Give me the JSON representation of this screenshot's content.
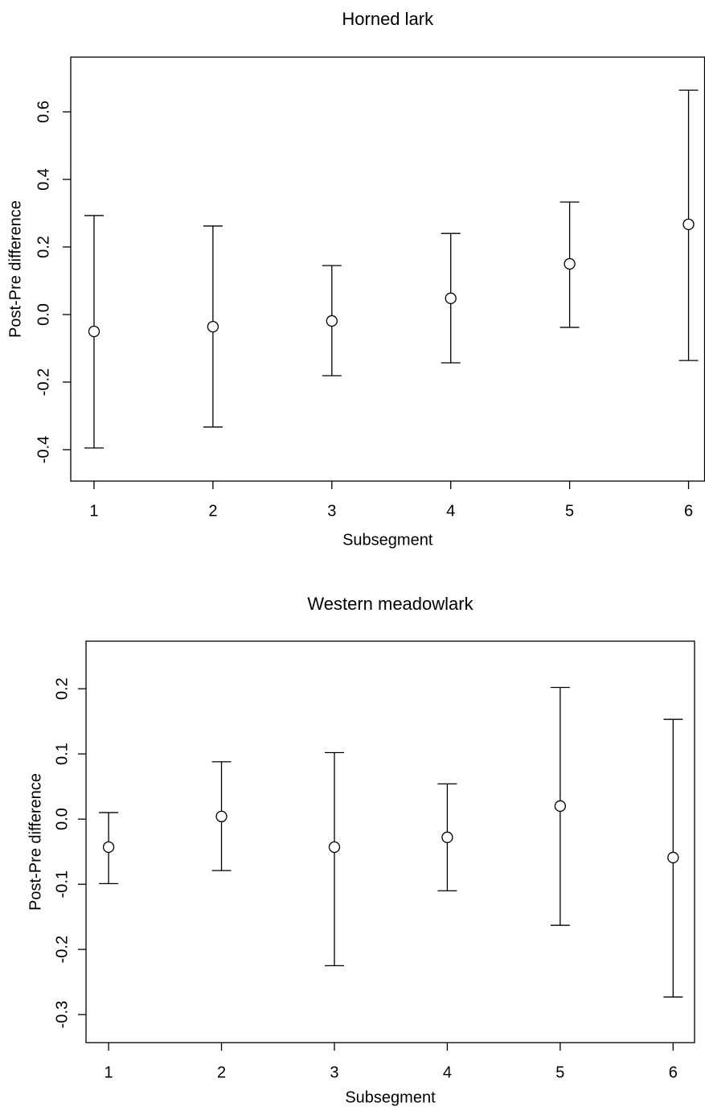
{
  "chart_data": [
    {
      "type": "errorbar",
      "title": "Horned lark",
      "xlabel": "Subsegment",
      "ylabel": "Post-Pre difference",
      "x": [
        1,
        2,
        3,
        4,
        5,
        6
      ],
      "values": [
        -0.05,
        -0.036,
        -0.019,
        0.048,
        0.15,
        0.267
      ],
      "lower": [
        -0.395,
        -0.333,
        -0.181,
        -0.143,
        -0.038,
        -0.136
      ],
      "upper": [
        0.293,
        0.262,
        0.145,
        0.24,
        0.333,
        0.664
      ],
      "color": "#000000",
      "xlim": [
        0.804,
        6.135
      ],
      "xticks": [
        1,
        2,
        3,
        4,
        5,
        6
      ],
      "ylim": [
        -0.493,
        0.762
      ],
      "yticks": [
        -0.4,
        -0.2,
        {
          "value": 0,
          "label": "0.0"
        },
        0.2,
        0.4,
        0.6
      ]
    },
    {
      "type": "errorbar",
      "title": "Western meadowlark",
      "xlabel": "Subsegment",
      "ylabel": "Post-Pre difference",
      "x": [
        1,
        2,
        3,
        4,
        5,
        6
      ],
      "values": [
        -0.043,
        0.004,
        -0.043,
        -0.028,
        0.02,
        -0.059
      ],
      "lower": [
        -0.099,
        -0.079,
        -0.225,
        -0.11,
        -0.163,
        -0.273
      ],
      "upper": [
        0.01,
        0.088,
        0.102,
        0.054,
        0.202,
        0.153
      ],
      "color": "#000000",
      "xlim": [
        0.8,
        6.19
      ],
      "xticks": [
        1,
        2,
        3,
        4,
        5,
        6
      ],
      "ylim": [
        -0.343,
        0.273
      ],
      "yticks": [
        -0.3,
        -0.2,
        -0.1,
        {
          "value": 0,
          "label": "0.0"
        },
        0.1,
        0.2
      ]
    }
  ]
}
